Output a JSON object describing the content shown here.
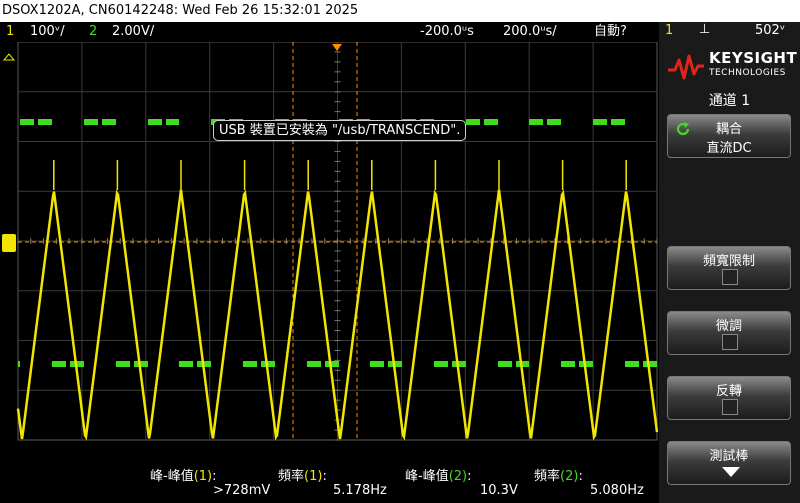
{
  "title_bar": "DSOX1202A, CN60142248: Wed Feb 26 15:32:01 2025",
  "status_bar": {
    "ch1_num": "1",
    "ch1_scale": "100ᵛ/",
    "ch2_num": "2",
    "ch2_scale": "2.00V/",
    "delay": "-200.0ᵘs",
    "timebase": "200.0ᵘs/",
    "trigger_mode": "自動?",
    "trig_source": "1",
    "trig_level": "502ᵛ"
  },
  "toast": "USB 裝置已安裝為 \"/usb/TRANSCEND\".",
  "colors": {
    "ch1": "#f2e600",
    "ch2": "#3fdc20",
    "marker": "#ff8c00",
    "grid": "#3a3a3a"
  },
  "side_panel": {
    "brand": "KEYSIGHT",
    "brand_sub": "TECHNOLOGIES",
    "menu_title": "通道 1",
    "softkeys": {
      "coupling_label": "耦合",
      "coupling_value": "直流DC",
      "bw_limit": "頻寬限制",
      "fine": "微調",
      "invert": "反轉",
      "probe": "測試棒"
    }
  },
  "measurements": [
    {
      "label": "峰-峰值",
      "ch": "(1)",
      "suffix": ":",
      "value": ">728mV"
    },
    {
      "label": "頻率",
      "ch": "(1)",
      "suffix": ":",
      "value": "5.178Hz"
    },
    {
      "label": "峰-峰值",
      "ch": "(2)",
      "suffix": ":",
      "value": "10.3V"
    },
    {
      "label": "頻率",
      "ch": "(2)",
      "suffix": ":",
      "value": "5.080Hz"
    }
  ]
}
